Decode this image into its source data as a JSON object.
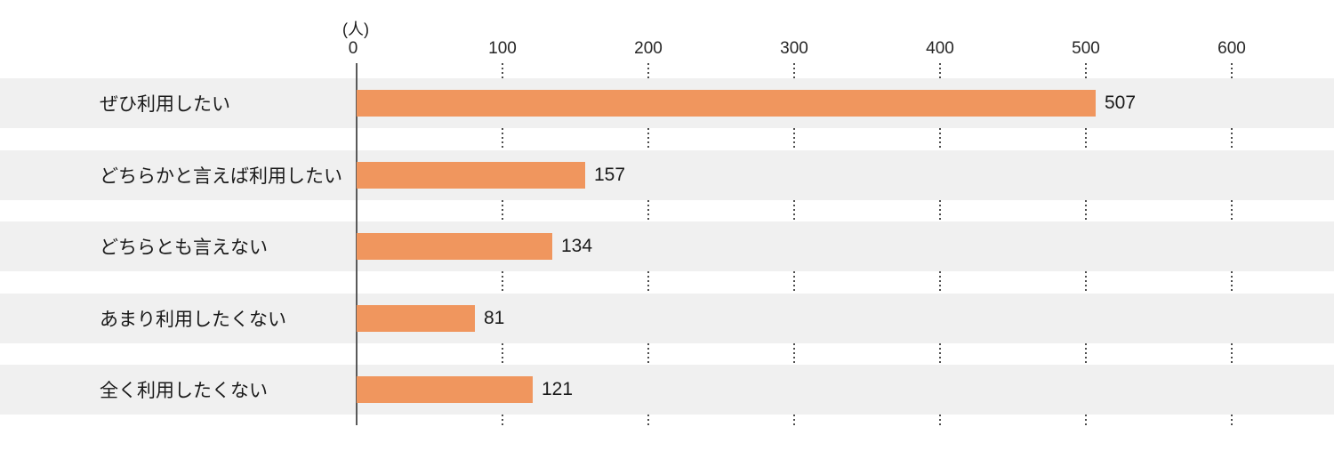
{
  "chart_data": {
    "type": "bar",
    "orientation": "horizontal",
    "title": "",
    "unit_label": "(人)",
    "categories": [
      "ぜひ利用したい",
      "どちらかと言えば利用したい",
      "どちらとも言えない",
      "あまり利用したくない",
      "全く利用したくない"
    ],
    "values": [
      507,
      157,
      134,
      81,
      121
    ],
    "x_ticks": [
      0,
      100,
      200,
      300,
      400,
      500,
      600
    ],
    "xlim": [
      0,
      670
    ],
    "xlabel": "",
    "ylabel": "",
    "legend": "none",
    "grid": "dotted vertical segments in gaps between row bands",
    "value_labels": "at end of each bar",
    "colors": {
      "bar": "#F0965E",
      "row_band": "#F0F0F0",
      "axis_line": "#595959",
      "gridline": "#4D4D4D",
      "text": "#1A1A1A"
    }
  }
}
